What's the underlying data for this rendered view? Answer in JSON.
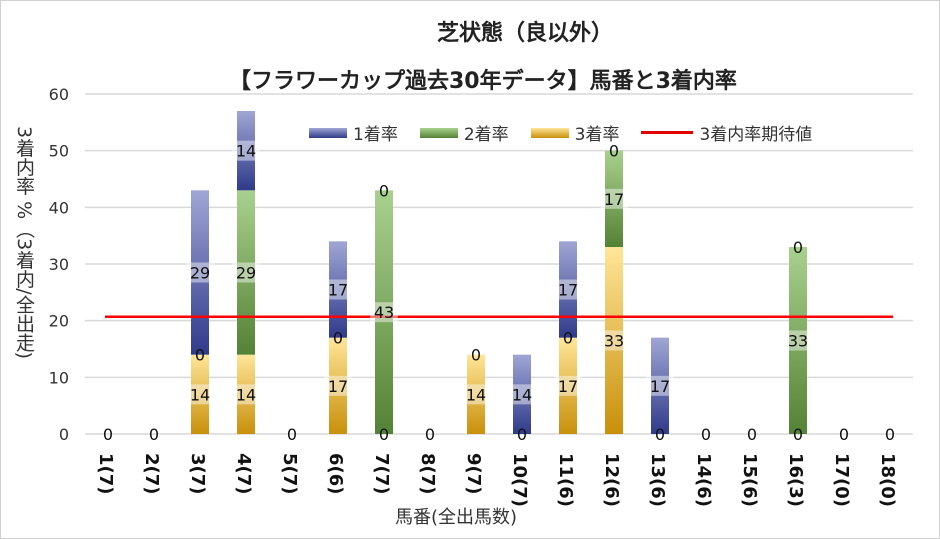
{
  "chart_data": {
    "type": "bar",
    "stacked": true,
    "title": "芝状態（良以外）",
    "subtitle": "【フラワーカップ過去30年データ】馬番と3着内率",
    "xlabel": "馬番(全出馬数)",
    "ylabel": "3着内率 %（3着内/全出走)",
    "ylim": [
      0,
      60
    ],
    "yticks": [
      0,
      10,
      20,
      30,
      40,
      50,
      60
    ],
    "grid": true,
    "legend_position": "top-right",
    "categories": [
      "1(7)",
      "2(7)",
      "3(7)",
      "4(7)",
      "5(7)",
      "6(6)",
      "7(7)",
      "8(7)",
      "9(7)",
      "10(7)",
      "11(6)",
      "12(6)",
      "13(6)",
      "14(6)",
      "15(6)",
      "16(3)",
      "17(0)",
      "18(0)"
    ],
    "series": [
      {
        "name": "3着率",
        "color": "#c8900a",
        "values": [
          0,
          0,
          14,
          14,
          0,
          17,
          0,
          0,
          14,
          0,
          17,
          33,
          0,
          0,
          0,
          0,
          0,
          0
        ]
      },
      {
        "name": "2着率",
        "color": "#548235",
        "values": [
          0,
          0,
          0,
          29,
          0,
          0,
          43,
          0,
          0,
          0,
          0,
          17,
          0,
          0,
          0,
          33,
          0,
          0
        ]
      },
      {
        "name": "1着率",
        "color": "#2f3a8a",
        "values": [
          0,
          0,
          29,
          14,
          0,
          17,
          0,
          0,
          0,
          14,
          17,
          0,
          17,
          0,
          0,
          0,
          0,
          0
        ]
      }
    ],
    "reference_line": {
      "name": "3着内率期待値",
      "value": 20.7,
      "color": "#ff0000"
    }
  }
}
